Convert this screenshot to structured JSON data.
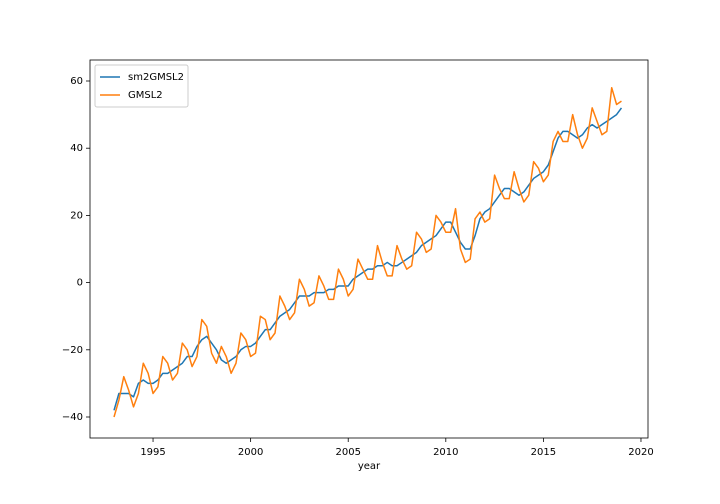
{
  "chart_data": {
    "type": "line",
    "xlabel": "year",
    "x": [
      1993.0,
      1993.25,
      1993.5,
      1993.75,
      1994.0,
      1994.25,
      1994.5,
      1994.75,
      1995.0,
      1995.25,
      1995.5,
      1995.75,
      1996.0,
      1996.25,
      1996.5,
      1996.75,
      1997.0,
      1997.25,
      1997.5,
      1997.75,
      1998.0,
      1998.25,
      1998.5,
      1998.75,
      1999.0,
      1999.25,
      1999.5,
      1999.75,
      2000.0,
      2000.25,
      2000.5,
      2000.75,
      2001.0,
      2001.25,
      2001.5,
      2001.75,
      2002.0,
      2002.25,
      2002.5,
      2002.75,
      2003.0,
      2003.25,
      2003.5,
      2003.75,
      2004.0,
      2004.25,
      2004.5,
      2004.75,
      2005.0,
      2005.25,
      2005.5,
      2005.75,
      2006.0,
      2006.25,
      2006.5,
      2006.75,
      2007.0,
      2007.25,
      2007.5,
      2007.75,
      2008.0,
      2008.25,
      2008.5,
      2008.75,
      2009.0,
      2009.25,
      2009.5,
      2009.75,
      2010.0,
      2010.25,
      2010.5,
      2010.75,
      2011.0,
      2011.25,
      2011.5,
      2011.75,
      2012.0,
      2012.25,
      2012.5,
      2012.75,
      2013.0,
      2013.25,
      2013.5,
      2013.75,
      2014.0,
      2014.25,
      2014.5,
      2014.75,
      2015.0,
      2015.25,
      2015.5,
      2015.75,
      2016.0,
      2016.25,
      2016.5,
      2016.75,
      2017.0,
      2017.25,
      2017.5,
      2017.75,
      2018.0,
      2018.25,
      2018.5,
      2018.75,
      2019.0
    ],
    "series": [
      {
        "name": "sm2GMSL2",
        "color": "#1f77b4",
        "values": [
          -38,
          -33,
          -33,
          -33,
          -34,
          -30,
          -29,
          -30,
          -30,
          -29,
          -27,
          -27,
          -26,
          -25,
          -24,
          -22,
          -22,
          -19,
          -17,
          -16,
          -18,
          -20,
          -23,
          -24,
          -23,
          -22,
          -20,
          -19,
          -19,
          -18,
          -16,
          -14,
          -14,
          -12,
          -10,
          -9,
          -8,
          -6,
          -4,
          -4,
          -4,
          -3,
          -3,
          -3,
          -2,
          -2,
          -1,
          -1,
          -1,
          1,
          2,
          3,
          4,
          4,
          5,
          5,
          6,
          5,
          5,
          6,
          7,
          8,
          9,
          11,
          12,
          13,
          14,
          16,
          18,
          18,
          15,
          12,
          10,
          10,
          14,
          19,
          21,
          22,
          24,
          26,
          28,
          28,
          27,
          26,
          27,
          29,
          31,
          32,
          33,
          35,
          39,
          43,
          45,
          45,
          44,
          43,
          44,
          46,
          47,
          46,
          47,
          48,
          49,
          50,
          52
        ]
      },
      {
        "name": "GMSL2",
        "color": "#ff7f0e",
        "values": [
          -40,
          -35,
          -28,
          -32,
          -37,
          -33,
          -24,
          -27,
          -33,
          -31,
          -22,
          -24,
          -29,
          -27,
          -18,
          -20,
          -25,
          -22,
          -11,
          -13,
          -21,
          -24,
          -19,
          -22,
          -27,
          -24,
          -15,
          -17,
          -22,
          -21,
          -10,
          -11,
          -17,
          -15,
          -4,
          -7,
          -11,
          -9,
          1,
          -2,
          -7,
          -6,
          2,
          -1,
          -5,
          -5,
          4,
          1,
          -4,
          -2,
          7,
          4,
          1,
          1,
          11,
          6,
          2,
          2,
          11,
          7,
          4,
          5,
          15,
          13,
          9,
          10,
          20,
          18,
          15,
          15,
          22,
          10,
          6,
          7,
          19,
          21,
          18,
          19,
          32,
          28,
          25,
          25,
          33,
          28,
          24,
          26,
          36,
          34,
          30,
          32,
          42,
          45,
          42,
          42,
          50,
          44,
          40,
          43,
          52,
          48,
          44,
          45,
          58,
          53,
          54
        ]
      }
    ],
    "xlim": [
      1991.77,
      2020.36
    ],
    "ylim": [
      -46.25,
      66.25
    ],
    "xticks": [
      1995,
      2000,
      2005,
      2010,
      2015,
      2020
    ],
    "yticks": [
      {
        "value": -40,
        "label": "−40"
      },
      {
        "value": -20,
        "label": "−20"
      },
      0,
      20,
      40,
      60
    ],
    "legend": "upper left"
  }
}
